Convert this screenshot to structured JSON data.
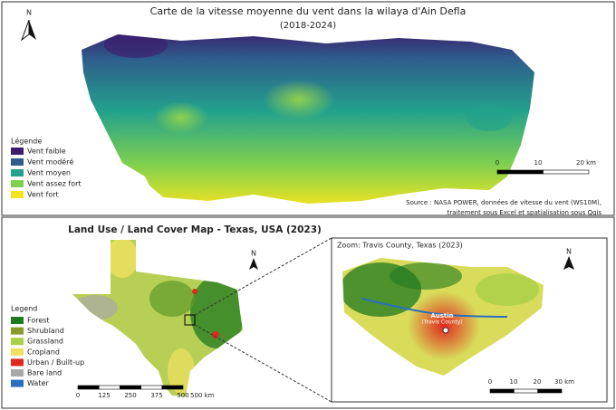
{
  "wind_map": {
    "north": "N",
    "title": "Carte de la vitesse moyenne du vent dans la wilaya d'Ain Defla",
    "subtitle": "(2018-2024)",
    "legend_title": "Légende",
    "legend": [
      {
        "label": "Vent faible",
        "color": "#3b1f6e"
      },
      {
        "label": "Vent modéré",
        "color": "#2f5d8c"
      },
      {
        "label": "Vent moyen",
        "color": "#22a18c"
      },
      {
        "label": "Vent assez fort",
        "color": "#7fd04f"
      },
      {
        "label": "Vent fort",
        "color": "#f4e31f"
      }
    ],
    "scale": [
      0,
      10,
      "20 km"
    ],
    "source": [
      "Source : NASA POWER, données de vitesse du vent (WS10M),",
      "traitement sous Excel et spatialisation sous Qgis"
    ]
  },
  "lulc_map": {
    "title": "Land Use / Land Cover Map - Texas, USA (2023)",
    "north": "N",
    "legend_title": "Legend",
    "legend": [
      {
        "label": "Forest",
        "color": "#1f7a1f"
      },
      {
        "label": "Shrubland",
        "color": "#8a9a2a"
      },
      {
        "label": "Grassland",
        "color": "#a8d046"
      },
      {
        "label": "Cropland",
        "color": "#f0e060"
      },
      {
        "label": "Urban / Built-up",
        "color": "#e0281e"
      },
      {
        "label": "Bare land",
        "color": "#a8a8a8"
      },
      {
        "label": "Water",
        "color": "#2a6fc0"
      }
    ],
    "scale": [
      0,
      125,
      250,
      375,
      500,
      "500 km"
    ],
    "inset": {
      "title": "Zoom: Travis County, Texas (2023)",
      "north": "N",
      "city": "Austin",
      "city_sub": "(Travis County)",
      "scale": [
        0,
        10,
        20,
        "30 km"
      ]
    }
  }
}
